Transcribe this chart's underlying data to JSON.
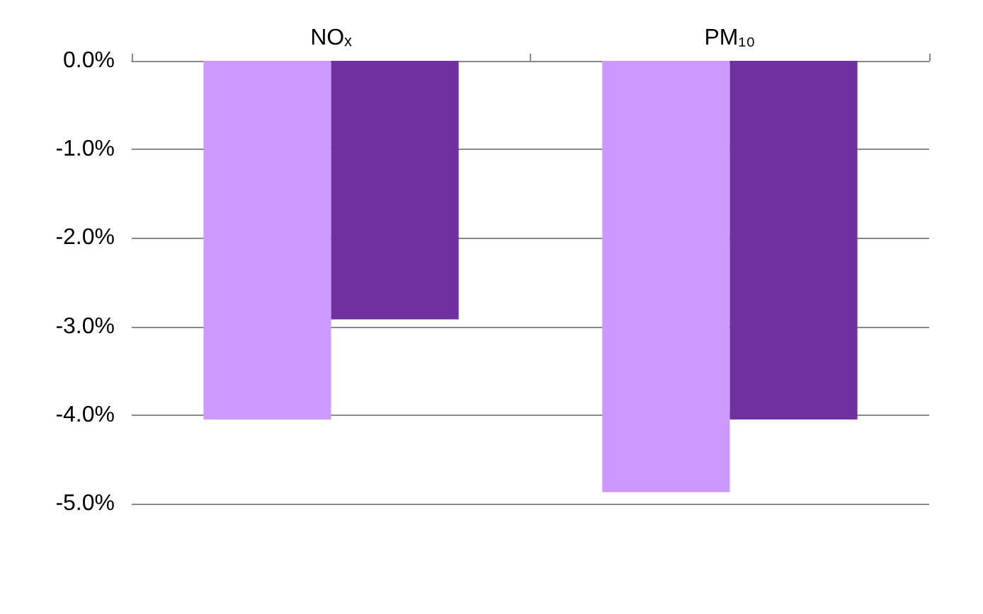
{
  "chart_data": {
    "type": "bar",
    "categories": [
      "NOₓ",
      "PM₁₀"
    ],
    "series": [
      {
        "color": "#cc99ff",
        "values": [
          -4.05,
          -4.87
        ]
      },
      {
        "color": "#7030a0",
        "values": [
          -2.92,
          -4.05
        ]
      }
    ],
    "ylim": [
      -5,
      0
    ],
    "yticks": [
      {
        "value": 0,
        "label": "0.0%"
      },
      {
        "value": -1,
        "label": "-1.0%"
      },
      {
        "value": -2,
        "label": "-2.0%"
      },
      {
        "value": -3,
        "label": "-3.0%"
      },
      {
        "value": -4,
        "label": "-4.0%"
      },
      {
        "value": -5,
        "label": "-5.0%"
      }
    ],
    "grid": "y"
  }
}
